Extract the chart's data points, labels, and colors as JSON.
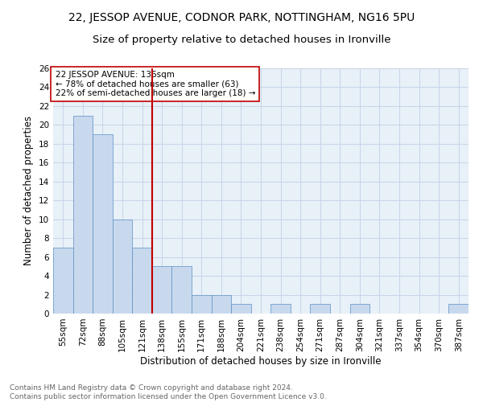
{
  "title": "22, JESSOP AVENUE, CODNOR PARK, NOTTINGHAM, NG16 5PU",
  "subtitle": "Size of property relative to detached houses in Ironville",
  "xlabel": "Distribution of detached houses by size in Ironville",
  "ylabel": "Number of detached properties",
  "categories": [
    "55sqm",
    "72sqm",
    "88sqm",
    "105sqm",
    "121sqm",
    "138sqm",
    "155sqm",
    "171sqm",
    "188sqm",
    "204sqm",
    "221sqm",
    "238sqm",
    "254sqm",
    "271sqm",
    "287sqm",
    "304sqm",
    "321sqm",
    "337sqm",
    "354sqm",
    "370sqm",
    "387sqm"
  ],
  "values": [
    7,
    21,
    19,
    10,
    7,
    5,
    5,
    2,
    2,
    1,
    0,
    1,
    0,
    1,
    0,
    1,
    0,
    0,
    0,
    0,
    1
  ],
  "bar_color": "#c8d9ee",
  "bar_edge_color": "#5b8ec4",
  "vline_color": "#c00000",
  "annotation_text": "22 JESSOP AVENUE: 136sqm\n← 78% of detached houses are smaller (63)\n22% of semi-detached houses are larger (18) →",
  "annotation_box_color": "white",
  "annotation_box_edge_color": "#c00000",
  "ylim": [
    0,
    26
  ],
  "yticks": [
    0,
    2,
    4,
    6,
    8,
    10,
    12,
    14,
    16,
    18,
    20,
    22,
    24,
    26
  ],
  "grid_color": "#c5d5e8",
  "bg_color": "#e8f0f8",
  "footnote": "Contains HM Land Registry data © Crown copyright and database right 2024.\nContains public sector information licensed under the Open Government Licence v3.0.",
  "title_fontsize": 10,
  "subtitle_fontsize": 9.5,
  "xlabel_fontsize": 8.5,
  "ylabel_fontsize": 8.5,
  "tick_fontsize": 7.5,
  "annotation_fontsize": 7.5,
  "footnote_fontsize": 6.5
}
